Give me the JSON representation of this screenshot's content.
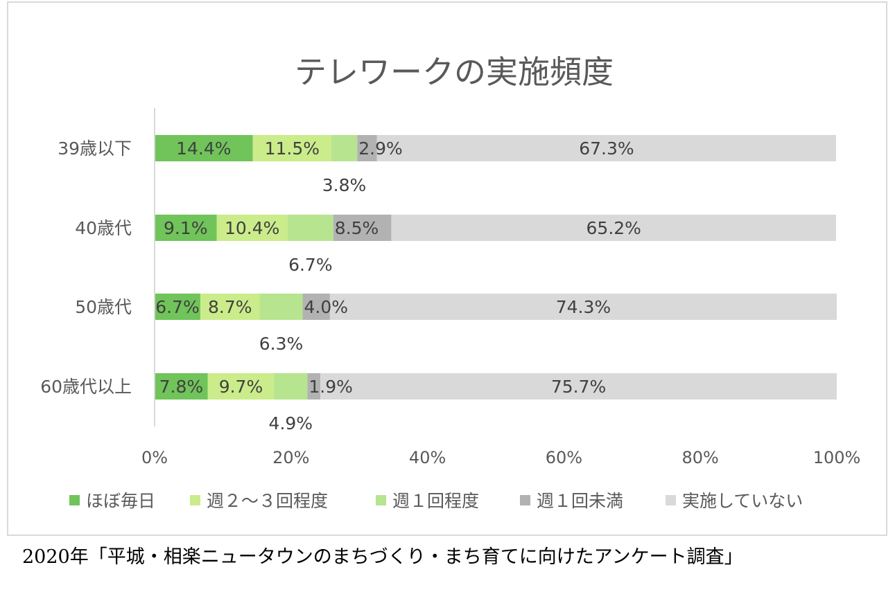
{
  "chart_data": {
    "type": "bar",
    "orientation": "horizontal",
    "stacked": true,
    "title": "テレワークの実施頻度",
    "categories": [
      "39歳以下",
      "40歳代",
      "50歳代",
      "60歳代以上"
    ],
    "series": [
      {
        "name": "ほぼ毎日",
        "color": "#70c45a",
        "values": [
          14.4,
          9.1,
          6.7,
          7.8
        ],
        "labels": [
          "14.4%",
          "9.1%",
          "6.7%",
          "7.8%"
        ]
      },
      {
        "name": "週２～３回程度",
        "color": "#cbec8a",
        "values": [
          11.5,
          10.4,
          8.7,
          9.7
        ],
        "labels": [
          "11.5%",
          "10.4%",
          "8.7%",
          "9.7%"
        ]
      },
      {
        "name": "週１回程度",
        "color": "#b7e48f",
        "values": [
          3.8,
          6.7,
          6.3,
          4.9
        ],
        "labels": [
          "3.8%",
          "6.7%",
          "6.3%",
          "4.9%"
        ]
      },
      {
        "name": "週１回未満",
        "color": "#b2b2b2",
        "values": [
          2.9,
          8.5,
          4.0,
          1.9
        ],
        "labels": [
          "2.9%",
          "8.5%",
          "4.0%",
          "1.9%"
        ]
      },
      {
        "name": "実施していない",
        "color": "#d9d9d9",
        "values": [
          67.3,
          65.2,
          74.3,
          75.7
        ],
        "labels": [
          "67.3%",
          "65.2%",
          "74.3%",
          "75.7%"
        ]
      }
    ],
    "xaxis": {
      "ticks": [
        "0%",
        "20%",
        "40%",
        "60%",
        "80%",
        "100%"
      ],
      "range": [
        0,
        100
      ]
    },
    "legend_position": "bottom",
    "grid": false
  },
  "caption": "2020年「平城・相楽ニュータウンのまちづくり・まち育てに向けたアンケート調査」"
}
